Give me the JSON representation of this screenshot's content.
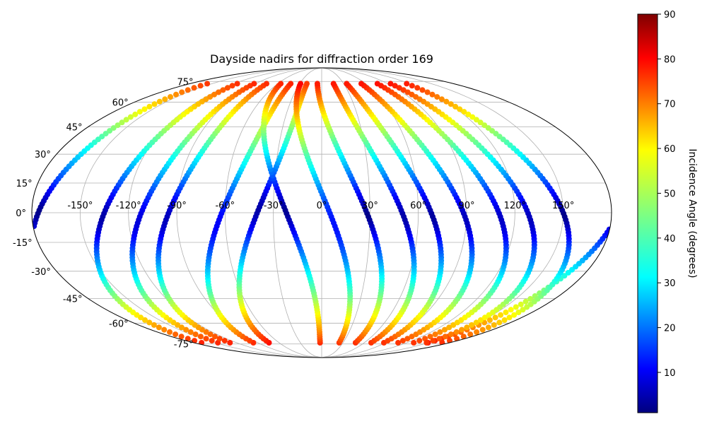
{
  "chart_data": {
    "type": "scatter",
    "projection": "mollweide",
    "title": "Dayside nadirs for diffraction order 169",
    "grid": true,
    "longitude_ticks": [
      "-150°",
      "-120°",
      "-90°",
      "-60°",
      "-30°",
      "0°",
      "30°",
      "60°",
      "90°",
      "120°",
      "150°"
    ],
    "longitude_tick_values": [
      -150,
      -120,
      -90,
      -60,
      -30,
      0,
      30,
      60,
      90,
      120,
      150
    ],
    "latitude_ticks": [
      "75°",
      "60°",
      "45°",
      "30°",
      "15°",
      "0°",
      "-15°",
      "-30°",
      "-45°",
      "-60°",
      "-75°"
    ],
    "latitude_tick_values": [
      75,
      60,
      45,
      30,
      15,
      0,
      -15,
      -30,
      -45,
      -60,
      -75
    ],
    "xlim": [
      -180,
      180
    ],
    "ylim": [
      -90,
      90
    ],
    "colorbar": {
      "label": "Incidence Angle (degrees)",
      "colormap": "jet",
      "range": [
        1,
        90
      ],
      "ticks": [
        "10",
        "20",
        "30",
        "40",
        "50",
        "60",
        "70",
        "80",
        "90"
      ],
      "tick_values": [
        10,
        20,
        30,
        40,
        50,
        60,
        70,
        80,
        90
      ]
    },
    "tracks": [
      {
        "lon0": -176,
        "lat_range": [
          -74,
          74
        ],
        "subsolar_lon": -174,
        "direction": 1
      },
      {
        "lon0": -135,
        "lat_range": [
          -74,
          74
        ],
        "subsolar_lon": -140,
        "direction": 1
      },
      {
        "lon0": -112,
        "lat_range": [
          -74,
          74
        ],
        "subsolar_lon": -122,
        "direction": 1
      },
      {
        "lon0": -95,
        "lat_range": [
          -74,
          74
        ],
        "subsolar_lon": -102,
        "direction": 1
      },
      {
        "lon0": -62,
        "lat_range": [
          -74,
          74
        ],
        "subsolar_lon": -75,
        "direction": 1
      },
      {
        "lon0": -40,
        "lat_range": [
          -74,
          74
        ],
        "subsolar_lon": -35,
        "direction": 1
      },
      {
        "lon0": -22,
        "lat_range": [
          -74,
          74
        ],
        "subsolar_lon": -25,
        "direction": -1
      },
      {
        "lon0": 5,
        "lat_range": [
          -74,
          74
        ],
        "subsolar_lon": 20,
        "direction": -1
      },
      {
        "lon0": 28,
        "lat_range": [
          -74,
          74
        ],
        "subsolar_lon": 30,
        "direction": -1
      },
      {
        "lon0": 50,
        "lat_range": [
          -74,
          74
        ],
        "subsolar_lon": 55,
        "direction": -1
      },
      {
        "lon0": 68,
        "lat_range": [
          -74,
          74
        ],
        "subsolar_lon": 72,
        "direction": -1
      },
      {
        "lon0": 88,
        "lat_range": [
          -74,
          74
        ],
        "subsolar_lon": 95,
        "direction": -1
      },
      {
        "lon0": 110,
        "lat_range": [
          -74,
          74
        ],
        "subsolar_lon": 118,
        "direction": -1
      },
      {
        "lon0": 128,
        "lat_range": [
          -74,
          74
        ],
        "subsolar_lon": 135,
        "direction": -1
      },
      {
        "lon0": 150,
        "lat_range": [
          -74,
          74
        ],
        "subsolar_lon": 152,
        "direction": -1
      }
    ]
  }
}
